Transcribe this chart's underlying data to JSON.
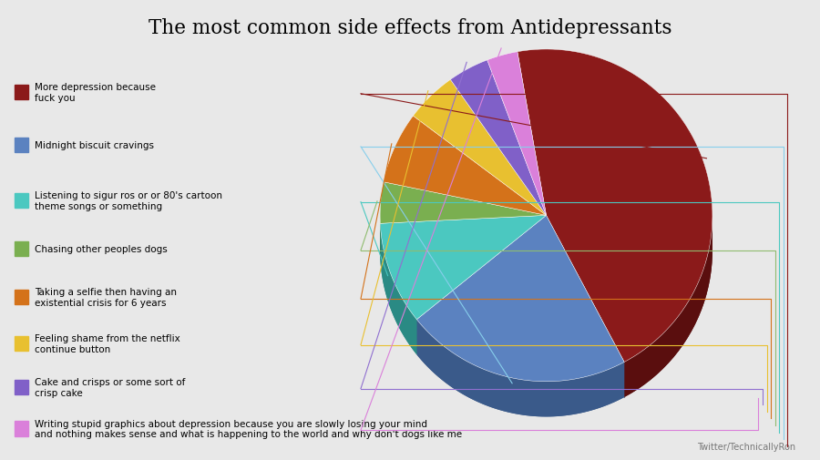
{
  "title": "The most common side effects from Antidepressants",
  "background_color": "#e8e8e8",
  "slices": [
    {
      "label": "More depression because\nfuck you",
      "value": 45,
      "color": "#8B1A1A",
      "dark_color": "#5A0E0E",
      "line_color": "#8B1A1A"
    },
    {
      "label": "Midnight biscuit cravings",
      "value": 22,
      "color": "#5B82C0",
      "dark_color": "#3A5A8A",
      "line_color": "#87CEEB"
    },
    {
      "label": "Listening to sigur ros or or 80's cartoon\ntheme songs or something",
      "value": 10,
      "color": "#4BC8C0",
      "dark_color": "#2A8A84",
      "line_color": "#4BC8C0"
    },
    {
      "label": "Chasing other peoples dogs",
      "value": 4,
      "color": "#7AAF50",
      "dark_color": "#4A7A30",
      "line_color": "#8FBC6F"
    },
    {
      "label": "Taking a selfie then having an\nexistential crisis for 6 years",
      "value": 7,
      "color": "#D4721A",
      "dark_color": "#9A4E0A",
      "line_color": "#D4721A"
    },
    {
      "label": "Feeling shame from the netflix\ncontinue button",
      "value": 5,
      "color": "#E8C030",
      "dark_color": "#B09010",
      "line_color": "#E8C030"
    },
    {
      "label": "Cake and crisps or some sort of\ncrisp cake",
      "value": 4,
      "color": "#8060C8",
      "dark_color": "#5040A0",
      "line_color": "#9070D0"
    },
    {
      "label": "Writing stupid graphics about depression because you are slowly losing your mind\nand nothing makes sense and what is happening to the world and why don't dogs like me",
      "value": 3,
      "color": "#DA80DA",
      "dark_color": "#A050A0",
      "line_color": "#DA80DA"
    }
  ],
  "watermark": "Twitter/TechnicallyRon",
  "connector_line_colors": [
    "#8B1A1A",
    "#87CEEB",
    "#4BC8C0",
    "#8FBC6F",
    "#D4721A",
    "#E8C030",
    "#9070D0",
    "#DA80DA"
  ]
}
